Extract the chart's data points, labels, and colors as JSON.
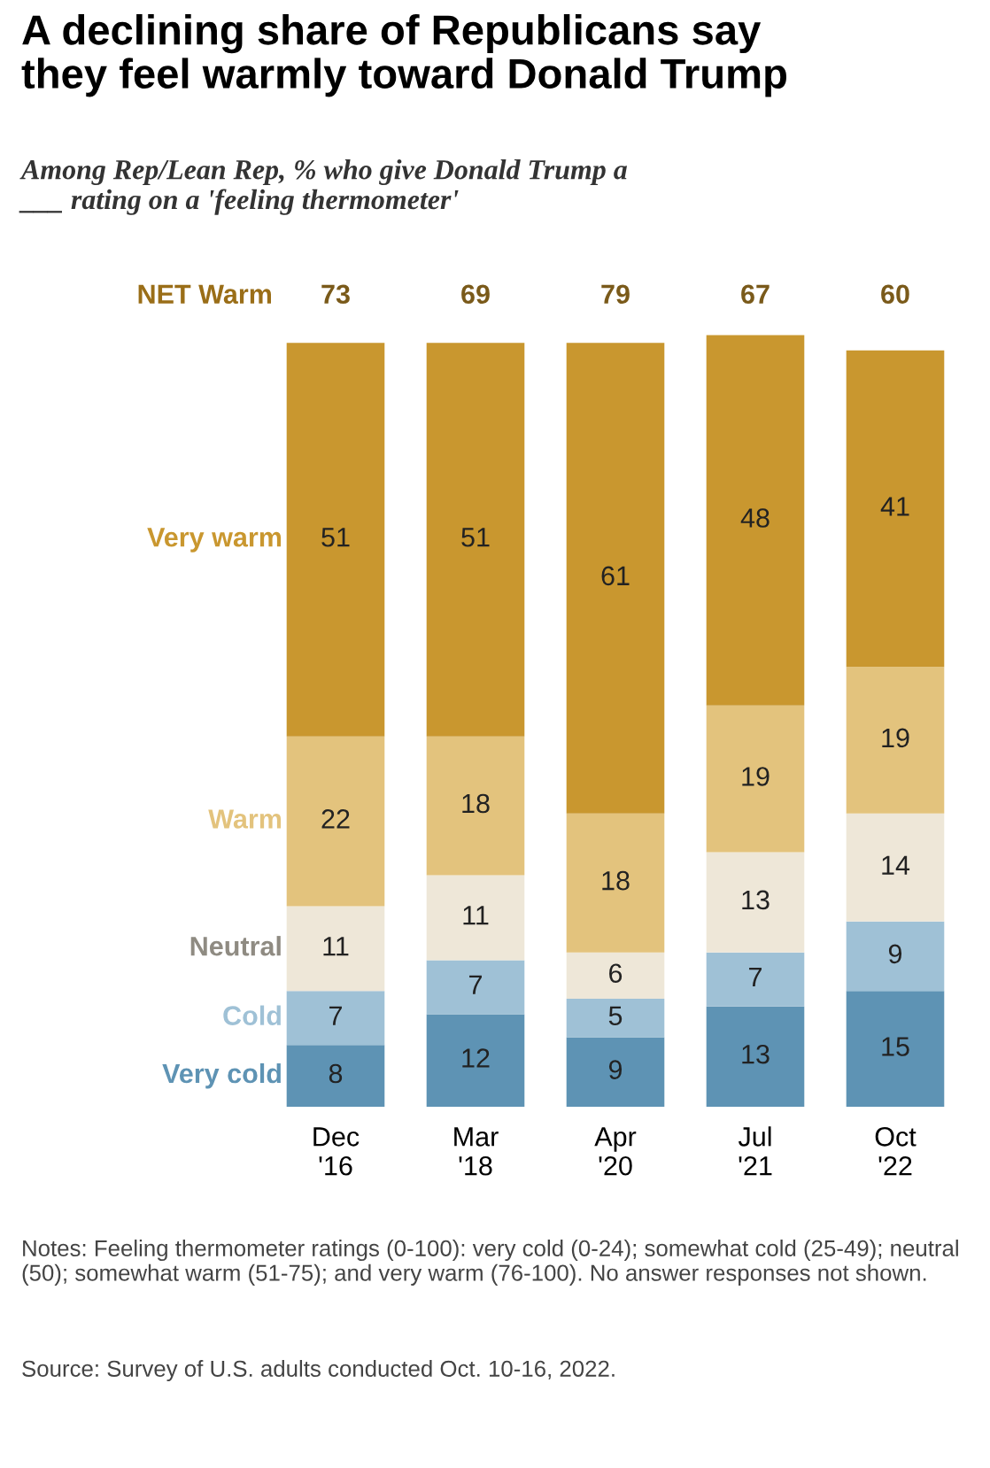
{
  "chart_data": {
    "type": "bar",
    "stacked": true,
    "title": "A declining share of Republicans say\nthey feel warmly toward Donald Trump",
    "subtitle": "Among Rep/Lean Rep, % who give Donald Trump a\n___ rating on a 'feeling thermometer'",
    "categories": [
      "Dec\n'16",
      "Mar\n'18",
      "Apr\n'20",
      "Jul\n'21",
      "Oct\n'22"
    ],
    "series": [
      {
        "name": "Very cold",
        "color": "#5e93b4",
        "values": [
          8,
          12,
          9,
          13,
          15
        ]
      },
      {
        "name": "Cold",
        "color": "#9fc1d6",
        "values": [
          7,
          7,
          5,
          7,
          9
        ]
      },
      {
        "name": "Neutral",
        "color": "#eee7d8",
        "values": [
          11,
          11,
          6,
          13,
          14
        ]
      },
      {
        "name": "Warm",
        "color": "#e3c37d",
        "values": [
          22,
          18,
          18,
          19,
          19
        ]
      },
      {
        "name": "Very warm",
        "color": "#c9972f",
        "values": [
          51,
          51,
          61,
          48,
          41
        ]
      }
    ],
    "data_labels": true,
    "grid": false,
    "annotations": [
      "NET Warm",
      "73",
      "69",
      "79",
      "67",
      "60",
      "Notes: Feeling thermometer ratings (0-100): very cold (0-24); somewhat cold (25-49); neutral (50); somewhat warm (51-75); and very warm (76-100). No answer responses not shown.",
      "Source: Survey of U.S. adults conducted Oct. 10-16, 2022."
    ]
  }
}
